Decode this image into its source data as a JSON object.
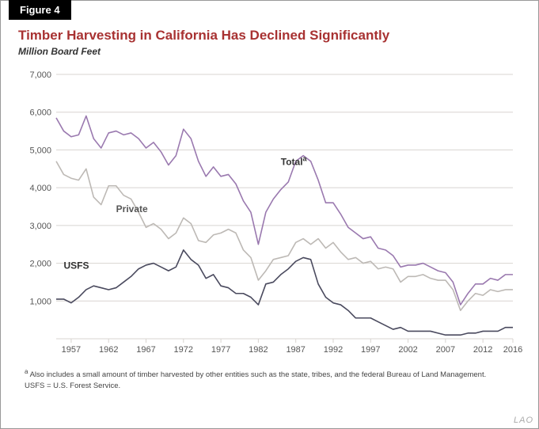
{
  "figure_label": "Figure 4",
  "title": "Timber Harvesting in California Has Declined Significantly",
  "subtitle": "Million Board Feet",
  "footnote_a": "Also includes a small amount of timber harvested by other entities such as the state, tribes, and the federal Bureau of Land Management.",
  "footnote_b": "USFS = U.S. Forest Service.",
  "watermark": "LAO",
  "chart": {
    "type": "line",
    "background_color": "#ffffff",
    "grid_color": "#d8d4d0",
    "ylim": [
      0,
      7000
    ],
    "ytick_step": 1000,
    "xlim": [
      1955,
      2016
    ],
    "xticks": [
      1957,
      1962,
      1967,
      1972,
      1977,
      1982,
      1987,
      1992,
      1997,
      2002,
      2007,
      2012,
      2016
    ],
    "line_width": 1.6,
    "label_fontsize": 11,
    "series_label_fontsize": 12,
    "series": {
      "total": {
        "label": "Total",
        "label_suffix": "a",
        "label_x": 1985,
        "label_y": 4600,
        "color": "#9a79af",
        "data": [
          [
            1955,
            5850
          ],
          [
            1956,
            5500
          ],
          [
            1957,
            5350
          ],
          [
            1958,
            5400
          ],
          [
            1959,
            5900
          ],
          [
            1960,
            5300
          ],
          [
            1961,
            5050
          ],
          [
            1962,
            5450
          ],
          [
            1963,
            5500
          ],
          [
            1964,
            5400
          ],
          [
            1965,
            5450
          ],
          [
            1966,
            5300
          ],
          [
            1967,
            5050
          ],
          [
            1968,
            5200
          ],
          [
            1969,
            4950
          ],
          [
            1970,
            4600
          ],
          [
            1971,
            4850
          ],
          [
            1972,
            5550
          ],
          [
            1973,
            5300
          ],
          [
            1974,
            4700
          ],
          [
            1975,
            4300
          ],
          [
            1976,
            4550
          ],
          [
            1977,
            4300
          ],
          [
            1978,
            4350
          ],
          [
            1979,
            4100
          ],
          [
            1980,
            3650
          ],
          [
            1981,
            3350
          ],
          [
            1982,
            2500
          ],
          [
            1983,
            3350
          ],
          [
            1984,
            3700
          ],
          [
            1985,
            3950
          ],
          [
            1986,
            4150
          ],
          [
            1987,
            4700
          ],
          [
            1988,
            4850
          ],
          [
            1989,
            4700
          ],
          [
            1990,
            4200
          ],
          [
            1991,
            3600
          ],
          [
            1992,
            3600
          ],
          [
            1993,
            3300
          ],
          [
            1994,
            2950
          ],
          [
            1995,
            2800
          ],
          [
            1996,
            2650
          ],
          [
            1997,
            2700
          ],
          [
            1998,
            2400
          ],
          [
            1999,
            2350
          ],
          [
            2000,
            2200
          ],
          [
            2001,
            1900
          ],
          [
            2002,
            1950
          ],
          [
            2003,
            1950
          ],
          [
            2004,
            2000
          ],
          [
            2005,
            1900
          ],
          [
            2006,
            1800
          ],
          [
            2007,
            1750
          ],
          [
            2008,
            1500
          ],
          [
            2009,
            900
          ],
          [
            2010,
            1200
          ],
          [
            2011,
            1450
          ],
          [
            2012,
            1450
          ],
          [
            2013,
            1600
          ],
          [
            2014,
            1550
          ],
          [
            2015,
            1700
          ],
          [
            2016,
            1700
          ]
        ]
      },
      "private": {
        "label": "Private",
        "label_x": 1963,
        "label_y": 3350,
        "color": "#bdb9b5",
        "data": [
          [
            1955,
            4700
          ],
          [
            1956,
            4350
          ],
          [
            1957,
            4250
          ],
          [
            1958,
            4200
          ],
          [
            1959,
            4500
          ],
          [
            1960,
            3750
          ],
          [
            1961,
            3550
          ],
          [
            1962,
            4050
          ],
          [
            1963,
            4050
          ],
          [
            1964,
            3800
          ],
          [
            1965,
            3700
          ],
          [
            1966,
            3350
          ],
          [
            1967,
            2950
          ],
          [
            1968,
            3050
          ],
          [
            1969,
            2900
          ],
          [
            1970,
            2650
          ],
          [
            1971,
            2800
          ],
          [
            1972,
            3200
          ],
          [
            1973,
            3050
          ],
          [
            1974,
            2600
          ],
          [
            1975,
            2550
          ],
          [
            1976,
            2750
          ],
          [
            1977,
            2800
          ],
          [
            1978,
            2900
          ],
          [
            1979,
            2800
          ],
          [
            1980,
            2350
          ],
          [
            1981,
            2150
          ],
          [
            1982,
            1550
          ],
          [
            1983,
            1800
          ],
          [
            1984,
            2100
          ],
          [
            1985,
            2150
          ],
          [
            1986,
            2200
          ],
          [
            1987,
            2550
          ],
          [
            1988,
            2650
          ],
          [
            1989,
            2500
          ],
          [
            1990,
            2650
          ],
          [
            1991,
            2400
          ],
          [
            1992,
            2550
          ],
          [
            1993,
            2300
          ],
          [
            1994,
            2100
          ],
          [
            1995,
            2150
          ],
          [
            1996,
            2000
          ],
          [
            1997,
            2050
          ],
          [
            1998,
            1850
          ],
          [
            1999,
            1900
          ],
          [
            2000,
            1850
          ],
          [
            2001,
            1500
          ],
          [
            2002,
            1650
          ],
          [
            2003,
            1650
          ],
          [
            2004,
            1700
          ],
          [
            2005,
            1600
          ],
          [
            2006,
            1550
          ],
          [
            2007,
            1550
          ],
          [
            2008,
            1300
          ],
          [
            2009,
            750
          ],
          [
            2010,
            1000
          ],
          [
            2011,
            1200
          ],
          [
            2012,
            1150
          ],
          [
            2013,
            1300
          ],
          [
            2014,
            1250
          ],
          [
            2015,
            1300
          ],
          [
            2016,
            1300
          ]
        ]
      },
      "usfs": {
        "label": "USFS",
        "label_x": 1956,
        "label_y": 1850,
        "color": "#4a4a5e",
        "data": [
          [
            1955,
            1050
          ],
          [
            1956,
            1050
          ],
          [
            1957,
            950
          ],
          [
            1958,
            1100
          ],
          [
            1959,
            1300
          ],
          [
            1960,
            1400
          ],
          [
            1961,
            1350
          ],
          [
            1962,
            1300
          ],
          [
            1963,
            1350
          ],
          [
            1964,
            1500
          ],
          [
            1965,
            1650
          ],
          [
            1966,
            1850
          ],
          [
            1967,
            1950
          ],
          [
            1968,
            2000
          ],
          [
            1969,
            1900
          ],
          [
            1970,
            1800
          ],
          [
            1971,
            1900
          ],
          [
            1972,
            2350
          ],
          [
            1973,
            2100
          ],
          [
            1974,
            1950
          ],
          [
            1975,
            1600
          ],
          [
            1976,
            1700
          ],
          [
            1977,
            1400
          ],
          [
            1978,
            1350
          ],
          [
            1979,
            1200
          ],
          [
            1980,
            1200
          ],
          [
            1981,
            1100
          ],
          [
            1982,
            900
          ],
          [
            1983,
            1450
          ],
          [
            1984,
            1500
          ],
          [
            1985,
            1700
          ],
          [
            1986,
            1850
          ],
          [
            1987,
            2050
          ],
          [
            1988,
            2150
          ],
          [
            1989,
            2100
          ],
          [
            1990,
            1450
          ],
          [
            1991,
            1100
          ],
          [
            1992,
            950
          ],
          [
            1993,
            900
          ],
          [
            1994,
            750
          ],
          [
            1995,
            550
          ],
          [
            1996,
            550
          ],
          [
            1997,
            550
          ],
          [
            1998,
            450
          ],
          [
            1999,
            350
          ],
          [
            2000,
            250
          ],
          [
            2001,
            300
          ],
          [
            2002,
            200
          ],
          [
            2003,
            200
          ],
          [
            2004,
            200
          ],
          [
            2005,
            200
          ],
          [
            2006,
            150
          ],
          [
            2007,
            100
          ],
          [
            2008,
            100
          ],
          [
            2009,
            100
          ],
          [
            2010,
            150
          ],
          [
            2011,
            150
          ],
          [
            2012,
            200
          ],
          [
            2013,
            200
          ],
          [
            2014,
            200
          ],
          [
            2015,
            300
          ],
          [
            2016,
            300
          ]
        ]
      }
    }
  }
}
